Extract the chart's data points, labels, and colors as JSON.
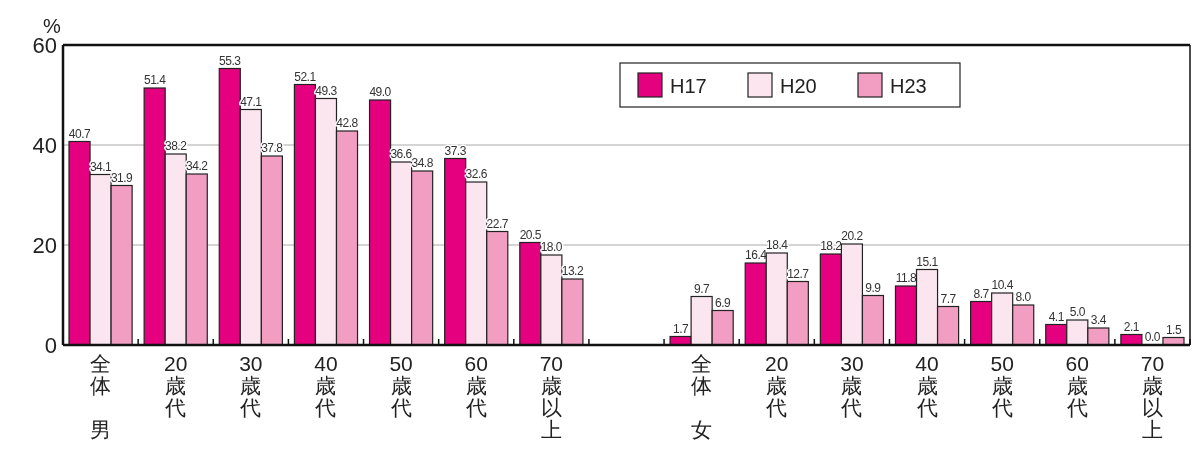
{
  "chart_data": {
    "type": "bar",
    "ylabel": "%",
    "categories": [
      "全体男",
      "20歳代",
      "30歳代",
      "40歳代",
      "50歳代",
      "60歳代",
      "70歳以上",
      null,
      "全体女",
      "20歳代",
      "30歳代",
      "40歳代",
      "50歳代",
      "60歳代",
      "70歳以上"
    ],
    "series": [
      {
        "name": "H17",
        "color": "#e4007f",
        "values": [
          40.7,
          51.4,
          55.3,
          52.1,
          49.0,
          37.3,
          20.5,
          null,
          1.7,
          16.4,
          18.2,
          11.8,
          8.7,
          4.1,
          2.1
        ],
        "value_labels": [
          "40.7",
          "51.4",
          "55.3",
          "52.1",
          "49.0",
          "37.3",
          "20.5",
          null,
          "1.7",
          "16.4",
          "18.2",
          "11.8",
          "8.7",
          "4.1",
          "2.1"
        ]
      },
      {
        "name": "H20",
        "color": "#fbe6ef",
        "values": [
          34.1,
          38.2,
          47.1,
          49.3,
          36.6,
          32.6,
          18.0,
          null,
          9.7,
          18.4,
          20.2,
          15.1,
          10.4,
          5.0,
          0.0
        ],
        "value_labels": [
          "34.1",
          "38.2",
          "47.1",
          "49.3",
          "36.6",
          "32.6",
          "18.0",
          null,
          "9.7",
          "18.4",
          "20.2",
          "15.1",
          "10.4",
          "5.0",
          "0.0"
        ]
      },
      {
        "name": "H23",
        "color": "#f19ec2",
        "values": [
          31.9,
          34.2,
          37.8,
          42.8,
          34.8,
          22.7,
          13.2,
          null,
          6.9,
          12.7,
          9.9,
          7.7,
          8.0,
          3.4,
          1.5
        ],
        "value_labels": [
          "31.9",
          "34.2",
          "37.8",
          "42.8",
          "34.8",
          "22.7",
          "13.2",
          null,
          "6.9",
          "12.7",
          "9.9",
          "7.7",
          "8.0",
          "3.4",
          "1.5"
        ]
      }
    ],
    "ylim": [
      0,
      60
    ],
    "yticks": [
      0,
      20,
      40,
      60
    ],
    "grid": "y",
    "legend": "top right"
  }
}
